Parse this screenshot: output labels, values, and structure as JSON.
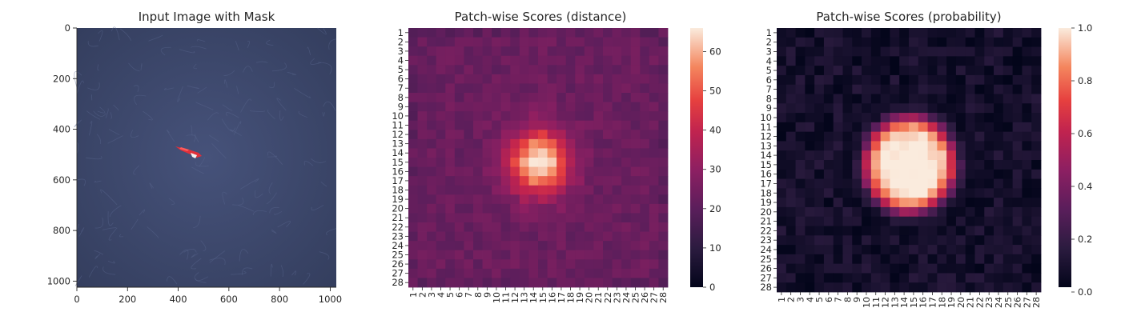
{
  "chart_data": [
    {
      "type": "image",
      "title": "Input Image with Mask",
      "xlim": [
        0,
        1024
      ],
      "ylim": [
        1024,
        0
      ],
      "xticks": [
        "0",
        "200",
        "400",
        "600",
        "800",
        "1000"
      ],
      "yticks": [
        "0",
        "200",
        "400",
        "600",
        "800",
        "1000"
      ],
      "image": {
        "background": "#3a4566",
        "mask_color": "#e0303a"
      },
      "mask_region": {
        "x": [
          390,
          480
        ],
        "y": [
          460,
          510
        ]
      }
    },
    {
      "type": "heatmap",
      "title": "Patch-wise Scores (distance)",
      "grid_size": 28,
      "row_labels": [
        "1",
        "2",
        "3",
        "4",
        "5",
        "6",
        "7",
        "8",
        "9",
        "10",
        "11",
        "12",
        "13",
        "14",
        "15",
        "16",
        "17",
        "18",
        "19",
        "20",
        "21",
        "22",
        "23",
        "24",
        "25",
        "26",
        "27",
        "28"
      ],
      "col_labels": [
        "1",
        "2",
        "3",
        "4",
        "5",
        "6",
        "7",
        "8",
        "9",
        "10",
        "11",
        "12",
        "13",
        "14",
        "15",
        "16",
        "17",
        "18",
        "19",
        "20",
        "21",
        "22",
        "23",
        "24",
        "25",
        "26",
        "27",
        "28"
      ],
      "colorbar": {
        "min": 0,
        "max": 66,
        "ticks": [
          "0",
          "10",
          "20",
          "30",
          "40",
          "50",
          "60"
        ],
        "tick_values": [
          0,
          10,
          20,
          30,
          40,
          50,
          60
        ]
      },
      "colormap": "rocket",
      "peak": {
        "row": 14,
        "col": 14,
        "value": 65
      },
      "background_value": 22
    },
    {
      "type": "heatmap",
      "title": "Patch-wise Scores (probability)",
      "grid_size": 28,
      "row_labels": [
        "1",
        "2",
        "3",
        "4",
        "5",
        "6",
        "7",
        "8",
        "9",
        "10",
        "11",
        "12",
        "13",
        "14",
        "15",
        "16",
        "17",
        "18",
        "19",
        "20",
        "21",
        "22",
        "23",
        "24",
        "25",
        "26",
        "27",
        "28"
      ],
      "col_labels": [
        "1",
        "2",
        "3",
        "4",
        "5",
        "6",
        "7",
        "8",
        "9",
        "10",
        "11",
        "12",
        "13",
        "14",
        "15",
        "16",
        "17",
        "18",
        "19",
        "20",
        "21",
        "22",
        "23",
        "24",
        "25",
        "26",
        "27",
        "28"
      ],
      "colorbar": {
        "min": 0,
        "max": 1,
        "ticks": [
          "0.0",
          "0.2",
          "0.4",
          "0.6",
          "0.8",
          "1.0"
        ],
        "tick_values": [
          0,
          0.2,
          0.4,
          0.6,
          0.8,
          1.0
        ]
      },
      "colormap": "rocket",
      "peak": {
        "row": 14,
        "col": 14,
        "value": 1.0
      },
      "background_value": 0.02
    }
  ]
}
